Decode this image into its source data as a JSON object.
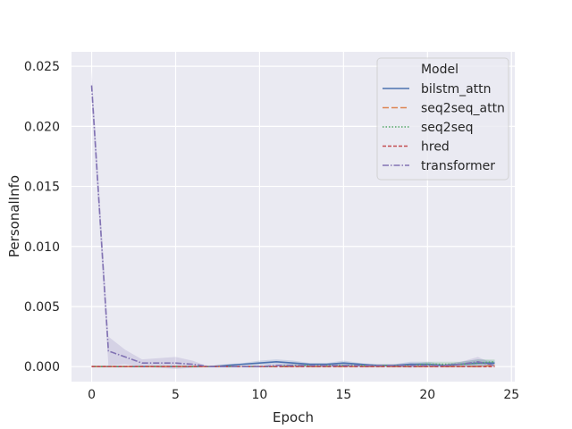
{
  "chart_data": {
    "type": "line",
    "xlabel": "Epoch",
    "ylabel": "PersonalInfo",
    "xlim": [
      -1.2,
      25.2
    ],
    "ylim": [
      -0.00125,
      0.0262
    ],
    "xticks": [
      0,
      5,
      10,
      15,
      20,
      25
    ],
    "yticks": [
      0.0,
      0.005,
      0.01,
      0.015,
      0.02,
      0.025
    ],
    "ytick_labels": [
      "0.000",
      "0.005",
      "0.010",
      "0.015",
      "0.020",
      "0.025"
    ],
    "grid": true,
    "legend_title": "Model",
    "legend_position": "top-right",
    "x": [
      0,
      1,
      2,
      3,
      4,
      5,
      6,
      7,
      8,
      9,
      10,
      11,
      12,
      13,
      14,
      15,
      16,
      17,
      18,
      19,
      20,
      21,
      22,
      23,
      24
    ],
    "series": [
      {
        "name": "bilstm_attn",
        "color": "#4c72b0",
        "dash": "solid",
        "values": [
          0.0,
          0.0,
          0.0,
          0.0,
          0.0,
          0.0,
          0.0,
          0.0,
          0.0001,
          0.0002,
          0.0003,
          0.0004,
          0.0003,
          0.0002,
          0.0002,
          0.0003,
          0.0002,
          0.0001,
          0.0001,
          0.0002,
          0.0002,
          0.0001,
          0.0002,
          0.0003,
          0.0003
        ],
        "band": [
          0.0,
          0.0,
          0.0,
          0.0,
          0.0,
          0.0,
          0.0,
          0.0,
          0.0001,
          0.0001,
          0.0002,
          0.0002,
          0.0002,
          0.0001,
          0.0001,
          0.0002,
          0.0001,
          0.0001,
          0.0001,
          0.0002,
          0.0002,
          0.0001,
          0.0002,
          0.0003,
          0.0002
        ]
      },
      {
        "name": "seq2seq_attn",
        "color": "#dd8452",
        "dash": "long-dash",
        "values": [
          0.0,
          0.0,
          0.0,
          0.0,
          0.0,
          0.0,
          0.0,
          0.0,
          0.0,
          0.0,
          0.0,
          0.0,
          0.0,
          0.0,
          0.0,
          0.0,
          0.0,
          0.0,
          0.0,
          0.0,
          0.0,
          0.0,
          0.0,
          0.0,
          0.0001
        ],
        "band": [
          0.0,
          0.0,
          0.0,
          0.0,
          0.0,
          0.0,
          0.0,
          0.0,
          0.0,
          0.0,
          0.0,
          0.0,
          0.0,
          0.0,
          0.0,
          0.0,
          0.0,
          0.0,
          0.0,
          0.0,
          0.0,
          0.0,
          0.0,
          0.0,
          0.0001
        ]
      },
      {
        "name": "seq2seq",
        "color": "#55a868",
        "dash": "dotted",
        "values": [
          0.0,
          0.0,
          0.0,
          0.0,
          0.0,
          0.0,
          0.0,
          0.0,
          0.0,
          0.0,
          0.0,
          0.0,
          0.0001,
          0.0001,
          0.0001,
          0.0001,
          0.0001,
          0.0001,
          0.0001,
          0.0001,
          0.0002,
          0.0002,
          0.0002,
          0.0003,
          0.0004
        ],
        "band": [
          0.0,
          0.0,
          0.0,
          0.0,
          0.0,
          0.0,
          0.0,
          0.0,
          0.0,
          0.0,
          0.0,
          0.0,
          0.0001,
          0.0001,
          0.0001,
          0.0001,
          0.0001,
          0.0001,
          0.0001,
          0.0001,
          0.0002,
          0.0002,
          0.0002,
          0.0003,
          0.0002
        ]
      },
      {
        "name": "hred",
        "color": "#c44e52",
        "dash": "short-dash",
        "values": [
          0.0,
          0.0,
          0.0,
          0.0,
          0.0,
          0.0,
          0.0,
          0.0,
          0.0,
          0.0,
          0.0,
          0.0,
          0.0,
          0.0,
          0.0,
          0.0,
          0.0,
          0.0,
          0.0,
          0.0,
          0.0,
          0.0,
          0.0,
          0.0,
          0.0
        ],
        "band": [
          0.0,
          0.0,
          0.0,
          0.0,
          0.0,
          0.0,
          0.0,
          0.0,
          0.0,
          0.0,
          0.0,
          0.0,
          0.0,
          0.0,
          0.0,
          0.0,
          0.0,
          0.0,
          0.0,
          0.0,
          0.0,
          0.0,
          0.0,
          0.0,
          0.0
        ]
      },
      {
        "name": "transformer",
        "color": "#8172b3",
        "dash": "dash-dot",
        "values": [
          0.0234,
          0.0013,
          0.0008,
          0.0003,
          0.0003,
          0.0003,
          0.0002,
          0.0,
          0.0,
          0.0,
          0.0,
          0.0001,
          0.0001,
          0.0001,
          0.0001,
          0.0001,
          0.0001,
          0.0001,
          0.0001,
          0.0001,
          0.0001,
          0.0001,
          0.0002,
          0.0004,
          0.0001
        ],
        "band": [
          0.0012,
          0.0012,
          0.0006,
          0.0003,
          0.0004,
          0.0005,
          0.0003,
          0.0,
          0.0,
          0.0,
          0.0,
          0.0001,
          0.0001,
          0.0001,
          0.0001,
          0.0001,
          0.0001,
          0.0001,
          0.0001,
          0.0002,
          0.0001,
          0.0001,
          0.0002,
          0.0004,
          0.0001
        ]
      }
    ]
  }
}
